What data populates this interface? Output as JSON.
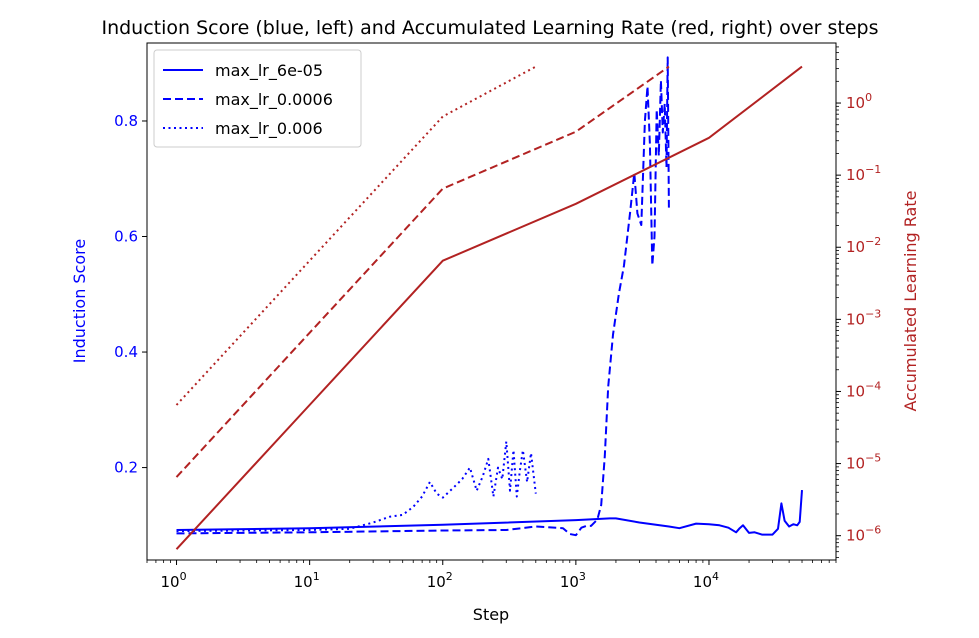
{
  "chart_data": {
    "type": "line",
    "title": "Induction Score (blue, left) and Accumulated Learning Rate (red, right) over steps",
    "xlabel": "Step",
    "ylabel_left": "Induction Score",
    "ylabel_right": "Accumulated Learning Rate",
    "x_scale": "log",
    "xlim": [
      0.6,
      90000
    ],
    "x_ticks": [
      {
        "base": "10",
        "exp": "0"
      },
      {
        "base": "10",
        "exp": "1"
      },
      {
        "base": "10",
        "exp": "2"
      },
      {
        "base": "10",
        "exp": "3"
      },
      {
        "base": "10",
        "exp": "4"
      }
    ],
    "y_left": {
      "lim": [
        0.04,
        0.935
      ],
      "ticks": [
        "0.2",
        "0.4",
        "0.6",
        "0.8"
      ],
      "color": "#0000ff"
    },
    "y_right": {
      "scale": "log",
      "lim": [
        4.6e-07,
        6.8
      ],
      "ticks": [
        {
          "base": "10",
          "exp": "−6"
        },
        {
          "base": "10",
          "exp": "−5"
        },
        {
          "base": "10",
          "exp": "−4"
        },
        {
          "base": "10",
          "exp": "−3"
        },
        {
          "base": "10",
          "exp": "−2"
        },
        {
          "base": "10",
          "exp": "−1"
        },
        {
          "base": "10",
          "exp": "0"
        }
      ],
      "color": "#b22222"
    },
    "legend": {
      "placement": "top-left"
    },
    "grid": false,
    "series": [
      {
        "name": "max_lr_6e-05",
        "axis": "left",
        "style": "solid",
        "color": "#0000ff",
        "points": [
          [
            1,
            0.092
          ],
          [
            10,
            0.095
          ],
          [
            100,
            0.101
          ],
          [
            1000,
            0.109
          ],
          [
            1800,
            0.112
          ],
          [
            2000,
            0.112
          ],
          [
            3000,
            0.105
          ],
          [
            5000,
            0.098
          ],
          [
            6000,
            0.095
          ],
          [
            8000,
            0.103
          ],
          [
            10000,
            0.102
          ],
          [
            12000,
            0.1
          ],
          [
            14000,
            0.096
          ],
          [
            16000,
            0.088
          ],
          [
            17000,
            0.095
          ],
          [
            18000,
            0.1
          ],
          [
            20000,
            0.087
          ],
          [
            22000,
            0.088
          ],
          [
            25000,
            0.084
          ],
          [
            30000,
            0.084
          ],
          [
            33000,
            0.094
          ],
          [
            35000,
            0.138
          ],
          [
            37000,
            0.108
          ],
          [
            40000,
            0.098
          ],
          [
            43000,
            0.102
          ],
          [
            46000,
            0.1
          ],
          [
            48000,
            0.106
          ],
          [
            50000,
            0.161
          ]
        ]
      },
      {
        "name": "max_lr_0.0006",
        "axis": "left",
        "style": "dashed",
        "color": "#0000ff",
        "points": [
          [
            1,
            0.086
          ],
          [
            10,
            0.088
          ],
          [
            100,
            0.091
          ],
          [
            300,
            0.092
          ],
          [
            500,
            0.098
          ],
          [
            800,
            0.095
          ],
          [
            900,
            0.085
          ],
          [
            1000,
            0.083
          ],
          [
            1100,
            0.096
          ],
          [
            1200,
            0.099
          ],
          [
            1300,
            0.099
          ],
          [
            1450,
            0.11
          ],
          [
            1550,
            0.135
          ],
          [
            1650,
            0.22
          ],
          [
            1750,
            0.34
          ],
          [
            1900,
            0.43
          ],
          [
            2100,
            0.5
          ],
          [
            2300,
            0.55
          ],
          [
            2550,
            0.64
          ],
          [
            2750,
            0.71
          ],
          [
            2900,
            0.64
          ],
          [
            3100,
            0.62
          ],
          [
            3300,
            0.8
          ],
          [
            3450,
            0.86
          ],
          [
            3600,
            0.76
          ],
          [
            3750,
            0.55
          ],
          [
            3900,
            0.6
          ],
          [
            4050,
            0.82
          ],
          [
            4200,
            0.74
          ],
          [
            4350,
            0.87
          ],
          [
            4500,
            0.78
          ],
          [
            4650,
            0.83
          ],
          [
            4800,
            0.72
          ],
          [
            4900,
            0.91
          ],
          [
            5000,
            0.65
          ]
        ]
      },
      {
        "name": "max_lr_0.006",
        "axis": "left",
        "style": "dotted",
        "color": "#0000ff",
        "points": [
          [
            1,
            0.09
          ],
          [
            10,
            0.092
          ],
          [
            20,
            0.094
          ],
          [
            30,
            0.105
          ],
          [
            40,
            0.115
          ],
          [
            50,
            0.118
          ],
          [
            60,
            0.132
          ],
          [
            70,
            0.15
          ],
          [
            80,
            0.175
          ],
          [
            90,
            0.155
          ],
          [
            100,
            0.148
          ],
          [
            120,
            0.165
          ],
          [
            140,
            0.18
          ],
          [
            160,
            0.2
          ],
          [
            180,
            0.16
          ],
          [
            200,
            0.185
          ],
          [
            220,
            0.215
          ],
          [
            240,
            0.15
          ],
          [
            260,
            0.2
          ],
          [
            280,
            0.18
          ],
          [
            300,
            0.245
          ],
          [
            320,
            0.16
          ],
          [
            340,
            0.23
          ],
          [
            360,
            0.15
          ],
          [
            380,
            0.195
          ],
          [
            400,
            0.23
          ],
          [
            430,
            0.175
          ],
          [
            460,
            0.225
          ],
          [
            500,
            0.155
          ]
        ]
      },
      {
        "name": "",
        "axis": "right",
        "style": "solid",
        "color": "#b22222",
        "points": [
          [
            1,
            6.5e-07
          ],
          [
            10,
            6.5e-05
          ],
          [
            100,
            0.0065
          ],
          [
            1000,
            0.04
          ],
          [
            10000,
            0.33
          ],
          [
            50000,
            3.2
          ]
        ]
      },
      {
        "name": "",
        "axis": "right",
        "style": "dashed",
        "color": "#b22222",
        "points": [
          [
            1,
            6.5e-06
          ],
          [
            10,
            0.00065
          ],
          [
            100,
            0.065
          ],
          [
            1000,
            0.4
          ],
          [
            5000,
            3.2
          ]
        ]
      },
      {
        "name": "",
        "axis": "right",
        "style": "dotted",
        "color": "#b22222",
        "points": [
          [
            1,
            6.5e-05
          ],
          [
            10,
            0.0065
          ],
          [
            100,
            0.65
          ],
          [
            500,
            3.2
          ]
        ]
      }
    ]
  }
}
